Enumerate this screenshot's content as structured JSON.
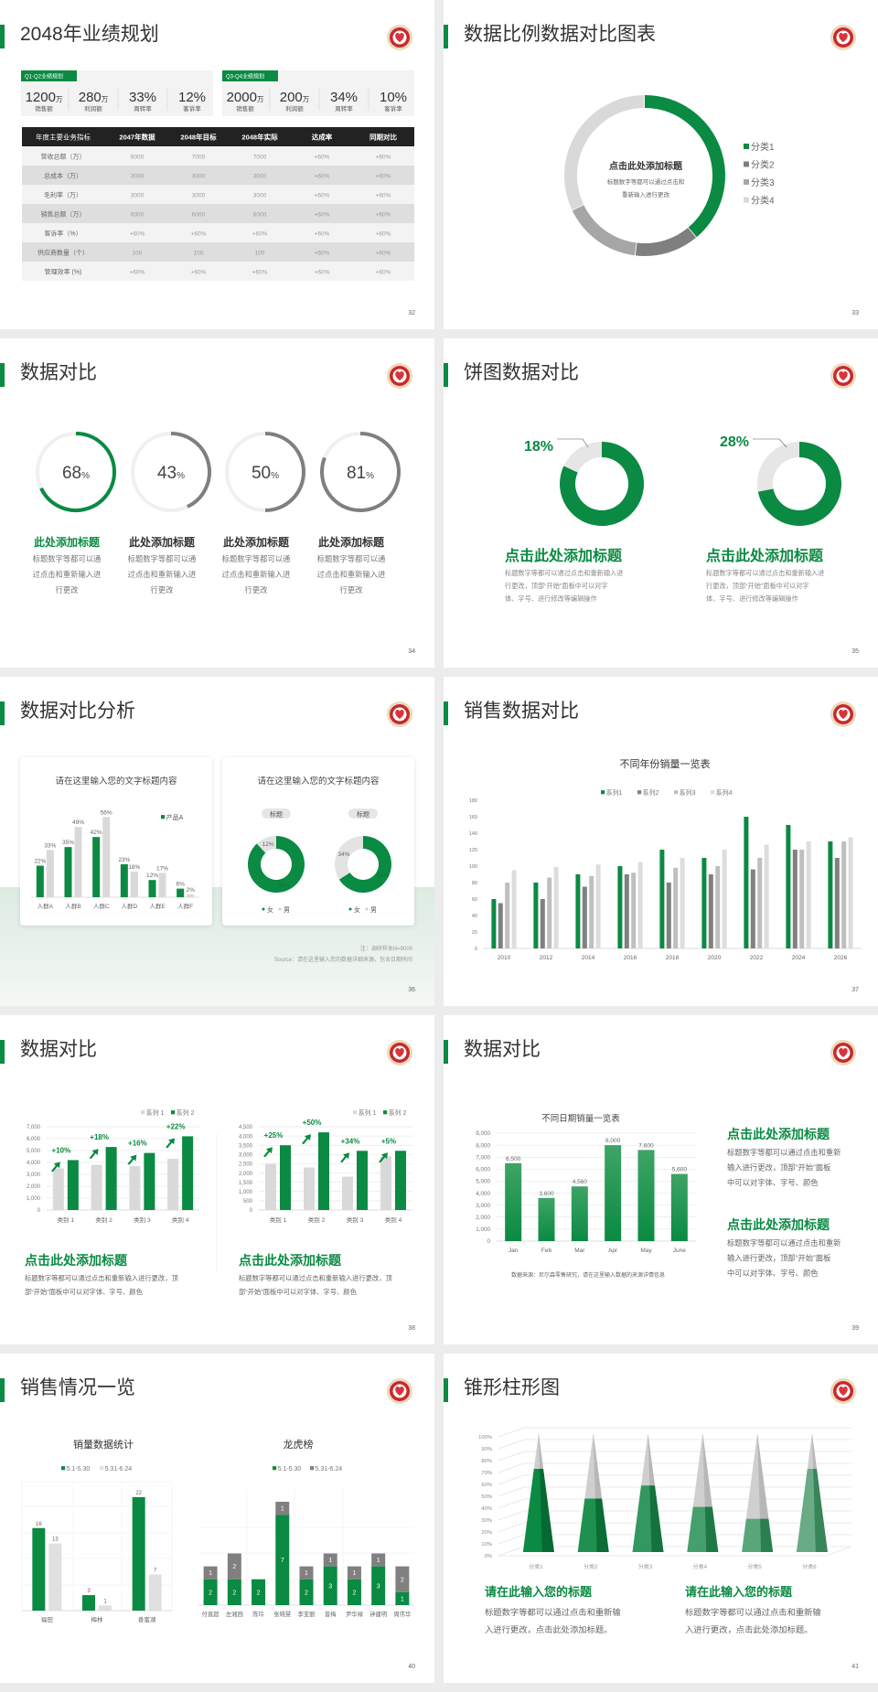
{
  "theme": {
    "accent": "#0a8a42",
    "dark_gray": "#7f7f7f",
    "mid_gray": "#a6a6a6",
    "light_gray": "#d9d9d9",
    "table_header": "#222222",
    "logo": "emblem-heart-icon"
  },
  "slides": [
    {
      "page": "32",
      "title": "2048年业绩规划",
      "kpi_groups": [
        {
          "tag": "Q1-Q2业绩规划",
          "items": [
            {
              "value": "1200",
              "unit": "万",
              "label": "销售额"
            },
            {
              "value": "280",
              "unit": "万",
              "label": "利润额"
            },
            {
              "value": "33%",
              "unit": "",
              "label": "周转率"
            },
            {
              "value": "12%",
              "unit": "",
              "label": "客诉率"
            }
          ]
        },
        {
          "tag": "Q3-Q4业绩规划",
          "items": [
            {
              "value": "2000",
              "unit": "万",
              "label": "销售额"
            },
            {
              "value": "200",
              "unit": "万",
              "label": "利润额"
            },
            {
              "value": "34%",
              "unit": "",
              "label": "周转率"
            },
            {
              "value": "10%",
              "unit": "",
              "label": "客诉率"
            }
          ]
        }
      ],
      "table": {
        "headers": [
          "年度主要业务指标",
          "2047年数据",
          "2048年目标",
          "2048年实际",
          "达成率",
          "同期对比"
        ],
        "rows": [
          [
            "营收总额（万）",
            "6000",
            "7000",
            "7000",
            "+60%",
            "+60%"
          ],
          [
            "总成本（万）",
            "3000",
            "3000",
            "3000",
            "+60%",
            "+60%"
          ],
          [
            "毛利率（万）",
            "3000",
            "3000",
            "3000",
            "+60%",
            "+60%"
          ],
          [
            "销售总额（万）",
            "6000",
            "6000",
            "6000",
            "+60%",
            "+60%"
          ],
          [
            "客诉率（%）",
            "+60%",
            "+60%",
            "+60%",
            "+60%",
            "+60%"
          ],
          [
            "供应商数量（个）",
            "100",
            "100",
            "100",
            "+60%",
            "+60%"
          ],
          [
            "管理效率 (%)",
            "+60%",
            "+60%",
            "+60%",
            "+60%",
            "+60%"
          ]
        ]
      }
    },
    {
      "page": "33",
      "title": "数据比例数据对比图表",
      "center_title": "点击此处添加标题",
      "center_text": [
        "标题数字等都可以通过点击和",
        "重新输入进行更改"
      ]
    },
    {
      "page": "34",
      "title": "数据对比",
      "items": [
        {
          "title": "此处添加标题",
          "text": [
            "标题数字等都可以通",
            "过点击和重新输入进",
            "行更改"
          ]
        },
        {
          "title": "此处添加标题",
          "text": [
            "标题数字等都可以通",
            "过点击和重新输入进",
            "行更改"
          ]
        },
        {
          "title": "此处添加标题",
          "text": [
            "标题数字等都可以通",
            "过点击和重新输入进",
            "行更改"
          ]
        },
        {
          "title": "此处添加标题",
          "text": [
            "标题数字等都可以通",
            "过点击和重新输入进",
            "行更改"
          ]
        }
      ]
    },
    {
      "page": "35",
      "title": "饼图数据对比",
      "items": [
        {
          "title": "点击此处添加标题",
          "text": [
            "标题数字等都可以通过点击和重新输入进",
            "行更改，顶部“开始”面板中可以对字",
            "体、字号、进行修改等编辑操作"
          ]
        },
        {
          "title": "点击此处添加标题",
          "text": [
            "标题数字等都可以通过点击和重新输入进",
            "行更改，顶部“开始”面板中可以对字",
            "体、字号、进行修改等编辑操作"
          ]
        }
      ]
    },
    {
      "page": "36",
      "title": "数据对比分析",
      "card_titles": [
        "请在这里输入您的文字标题内容",
        "请在这里输入您的文字标题内容"
      ],
      "note": "注：调研样本N=9000",
      "source": "Source：请在这里输入您的数据详细来源，包含日期时间"
    },
    {
      "page": "37",
      "title": "销售数据对比"
    },
    {
      "page": "38",
      "title": "数据对比",
      "items": [
        {
          "title": "点击此处添加标题",
          "text": [
            "标题数字等都可以通过点击和重新输入进行更改，顶",
            "部“开始”面板中可以对字体、字号、颜色"
          ]
        },
        {
          "title": "点击此处添加标题",
          "text": [
            "标题数字等都可以通过点击和重新输入进行更改，顶",
            "部“开始”面板中可以对字体、字号、颜色"
          ]
        }
      ]
    },
    {
      "page": "39",
      "title": "数据对比",
      "source": "数据来源：尼尔森零售研究，请在这里输入数据的来源详情信息",
      "items": [
        {
          "title": "点击此处添加标题",
          "text": [
            "标题数字等都可以通过点击和重新",
            "输入进行更改，顶部“开始”面板",
            "中可以对字体、字号、颜色"
          ]
        },
        {
          "title": "点击此处添加标题",
          "text": [
            "标题数字等都可以通过点击和重新",
            "输入进行更改，顶部“开始”面板",
            "中可以对字体、字号、颜色"
          ]
        }
      ]
    },
    {
      "page": "40",
      "title": "销售情况一览"
    },
    {
      "page": "41",
      "title": "锥形柱形图",
      "items": [
        {
          "title": "请在此输入您的标题",
          "text": [
            "标题数字等都可以通过点击和重新输",
            "入进行更改，点击此处添加标题。"
          ]
        },
        {
          "title": "请在此输入您的标题",
          "text": [
            "标题数字等都可以通过点击和重新输",
            "入进行更改，点击此处添加标题。"
          ]
        }
      ]
    }
  ],
  "chart_data": [
    {
      "type": "pie",
      "variant": "donut",
      "categories": [
        "分类1",
        "分类2",
        "分类3",
        "分类4"
      ],
      "values": [
        39,
        13,
        16,
        32
      ],
      "colors": [
        "#0a8a42",
        "#7f7f7f",
        "#a6a6a6",
        "#d9d9d9"
      ],
      "legend": "right"
    },
    {
      "type": "pie",
      "variant": "progress-ring",
      "values": [
        68,
        43,
        50,
        81
      ],
      "unit": "%",
      "colors": [
        "#0a8a42",
        "#7f7f7f",
        "#7f7f7f",
        "#7f7f7f"
      ]
    },
    {
      "type": "pie",
      "variant": "donut",
      "values": [
        18,
        28
      ],
      "labels": [
        "18%",
        "28%"
      ],
      "colors": [
        "#d9d9d9",
        "#0a8a42"
      ]
    },
    {
      "type": "bar",
      "categories": [
        "人群A",
        "人群B",
        "人群C",
        "人群D",
        "人群E",
        "人群F"
      ],
      "ylim": [
        0,
        60
      ],
      "legend": "top-right",
      "series": [
        {
          "name": "产品A",
          "values": [
            22,
            35,
            42,
            23,
            12,
            6
          ],
          "labels": [
            "22%",
            "35%",
            "42%",
            "23%",
            "12%",
            "6%"
          ],
          "color": "#0a8a42"
        },
        {
          "values": [
            33,
            49,
            56,
            18,
            17,
            2
          ],
          "labels": [
            "33%",
            "49%",
            "56%",
            "18%",
            "17%",
            "2%"
          ],
          "color": "#d9d9d9"
        }
      ]
    },
    {
      "type": "pie",
      "variant": "donut",
      "series_names": [
        "女",
        "男"
      ],
      "title_labels": [
        "标题",
        "标题"
      ],
      "colors": [
        "#0a8a42",
        "#e3e3e3"
      ],
      "charts": [
        {
          "values": [
            88,
            12
          ],
          "labels": [
            "88%",
            "12%"
          ]
        },
        {
          "values": [
            66,
            34
          ],
          "labels": [
            "66%",
            "34%"
          ]
        }
      ]
    },
    {
      "type": "bar",
      "title": "不同年份销量一览表",
      "categories": [
        "2010",
        "2012",
        "2014",
        "2016",
        "2018",
        "2020",
        "2022",
        "2024",
        "2026"
      ],
      "ylim": [
        0,
        180
      ],
      "yticks": [
        "0",
        "20",
        "40",
        "60",
        "80",
        "100",
        "120",
        "140",
        "160",
        "180"
      ],
      "legend": "top",
      "series": [
        {
          "name": "系列1",
          "values": [
            60,
            80,
            90,
            100,
            120,
            110,
            160,
            150,
            130
          ],
          "color": "#0a8a42"
        },
        {
          "name": "系列2",
          "values": [
            55,
            60,
            75,
            90,
            80,
            90,
            96,
            120,
            110
          ],
          "color": "#808080"
        },
        {
          "name": "系列3",
          "values": [
            80,
            86,
            88,
            92,
            98,
            100,
            110,
            120,
            130
          ],
          "color": "#bfbfbf"
        },
        {
          "name": "系列4",
          "values": [
            95,
            99,
            102,
            105,
            110,
            120,
            126,
            130,
            135
          ],
          "color": "#dddddd"
        }
      ]
    },
    {
      "type": "bar",
      "categories": [
        "类别 1",
        "类别 2",
        "类别 3",
        "类别 4"
      ],
      "ylim": [
        0,
        7000
      ],
      "yticks": [
        "0",
        "1,000",
        "2,000",
        "3,000",
        "4,000",
        "5,000",
        "6,000",
        "7,000"
      ],
      "legend": "top-right",
      "grid": true,
      "series": [
        {
          "name": "系列 1",
          "values": [
            3500,
            3800,
            3700,
            4300
          ],
          "color": "#d9d9d9"
        },
        {
          "name": "系列 2",
          "values": [
            4200,
            5300,
            4800,
            6200
          ],
          "color": "#0a8a42"
        }
      ],
      "annotations": [
        "+10%",
        "+18%",
        "+16%",
        "+22%"
      ]
    },
    {
      "type": "bar",
      "categories": [
        "类别 1",
        "类别 2",
        "类别 3",
        "类别 4"
      ],
      "ylim": [
        0,
        4500
      ],
      "yticks": [
        "0",
        "500",
        "1,000",
        "1,500",
        "2,000",
        "2,500",
        "3,000",
        "3,500",
        "4,000",
        "4,500"
      ],
      "legend": "top-right",
      "grid": true,
      "series": [
        {
          "name": "系列 1",
          "values": [
            2500,
            2300,
            1800,
            2900
          ],
          "color": "#d9d9d9"
        },
        {
          "name": "系列 2",
          "values": [
            3500,
            4200,
            3200,
            3200
          ],
          "color": "#0a8a42"
        }
      ],
      "annotations": [
        "+25%",
        "+50%",
        "+34%",
        "+5%"
      ]
    },
    {
      "type": "bar",
      "title": "不同日期销量一览表",
      "categories": [
        "Jan",
        "Feb",
        "Mar",
        "Apr",
        "May",
        "June"
      ],
      "ylim": [
        0,
        9000
      ],
      "grid": true,
      "yticks": [
        "0",
        "1,000",
        "2,000",
        "3,000",
        "4,000",
        "5,000",
        "6,000",
        "7,000",
        "8,000",
        "9,000"
      ],
      "series": [
        {
          "values": [
            6500,
            3600,
            4560,
            8000,
            7600,
            5600
          ],
          "labels": [
            "6,500",
            "3,600",
            "4,560",
            "8,000",
            "7,600",
            "5,600"
          ],
          "color": "#0a8a42"
        }
      ]
    },
    {
      "type": "bar",
      "title": "销量数据统计",
      "categories": [
        "福田",
        "梅林",
        "香蜜湖"
      ],
      "legend": "top",
      "series": [
        {
          "name": "5.1-5.30",
          "values": [
            16,
            3,
            22
          ],
          "color": "#0a8a42"
        },
        {
          "name": "5.31-6.24",
          "values": [
            13,
            1,
            7
          ],
          "color": "#e0e0e0"
        }
      ]
    },
    {
      "type": "bar",
      "variant": "stacked",
      "title": "龙虎榜",
      "categories": [
        "付直超",
        "左湘园",
        "陈玲",
        "张晓慧",
        "李亚丽",
        "曾梅",
        "尹华禄",
        "钟建明",
        "周伟华"
      ],
      "legend": "top",
      "series": [
        {
          "name": "5.1-5.30",
          "values": [
            2,
            2,
            2,
            7,
            2,
            3,
            2,
            3,
            1
          ],
          "color": "#0a8a42"
        },
        {
          "name": "5.31-6.24",
          "values": [
            1,
            2,
            0,
            1,
            1,
            1,
            1,
            1,
            2
          ],
          "color": "#808080"
        }
      ]
    },
    {
      "type": "bar",
      "variant": "3d-cone",
      "categories": [
        "分类1",
        "分类2",
        "分类3",
        "分类4",
        "分类5",
        "分类6"
      ],
      "ylim": [
        0,
        100
      ],
      "yticks": [
        "0%",
        "10%",
        "20%",
        "30%",
        "40%",
        "50%",
        "60%",
        "70%",
        "80%",
        "90%",
        "100%"
      ],
      "values": [
        70,
        45,
        56,
        38,
        28,
        70
      ],
      "color": "#0a8a42",
      "remainder_color": "#cfcfcf"
    }
  ]
}
